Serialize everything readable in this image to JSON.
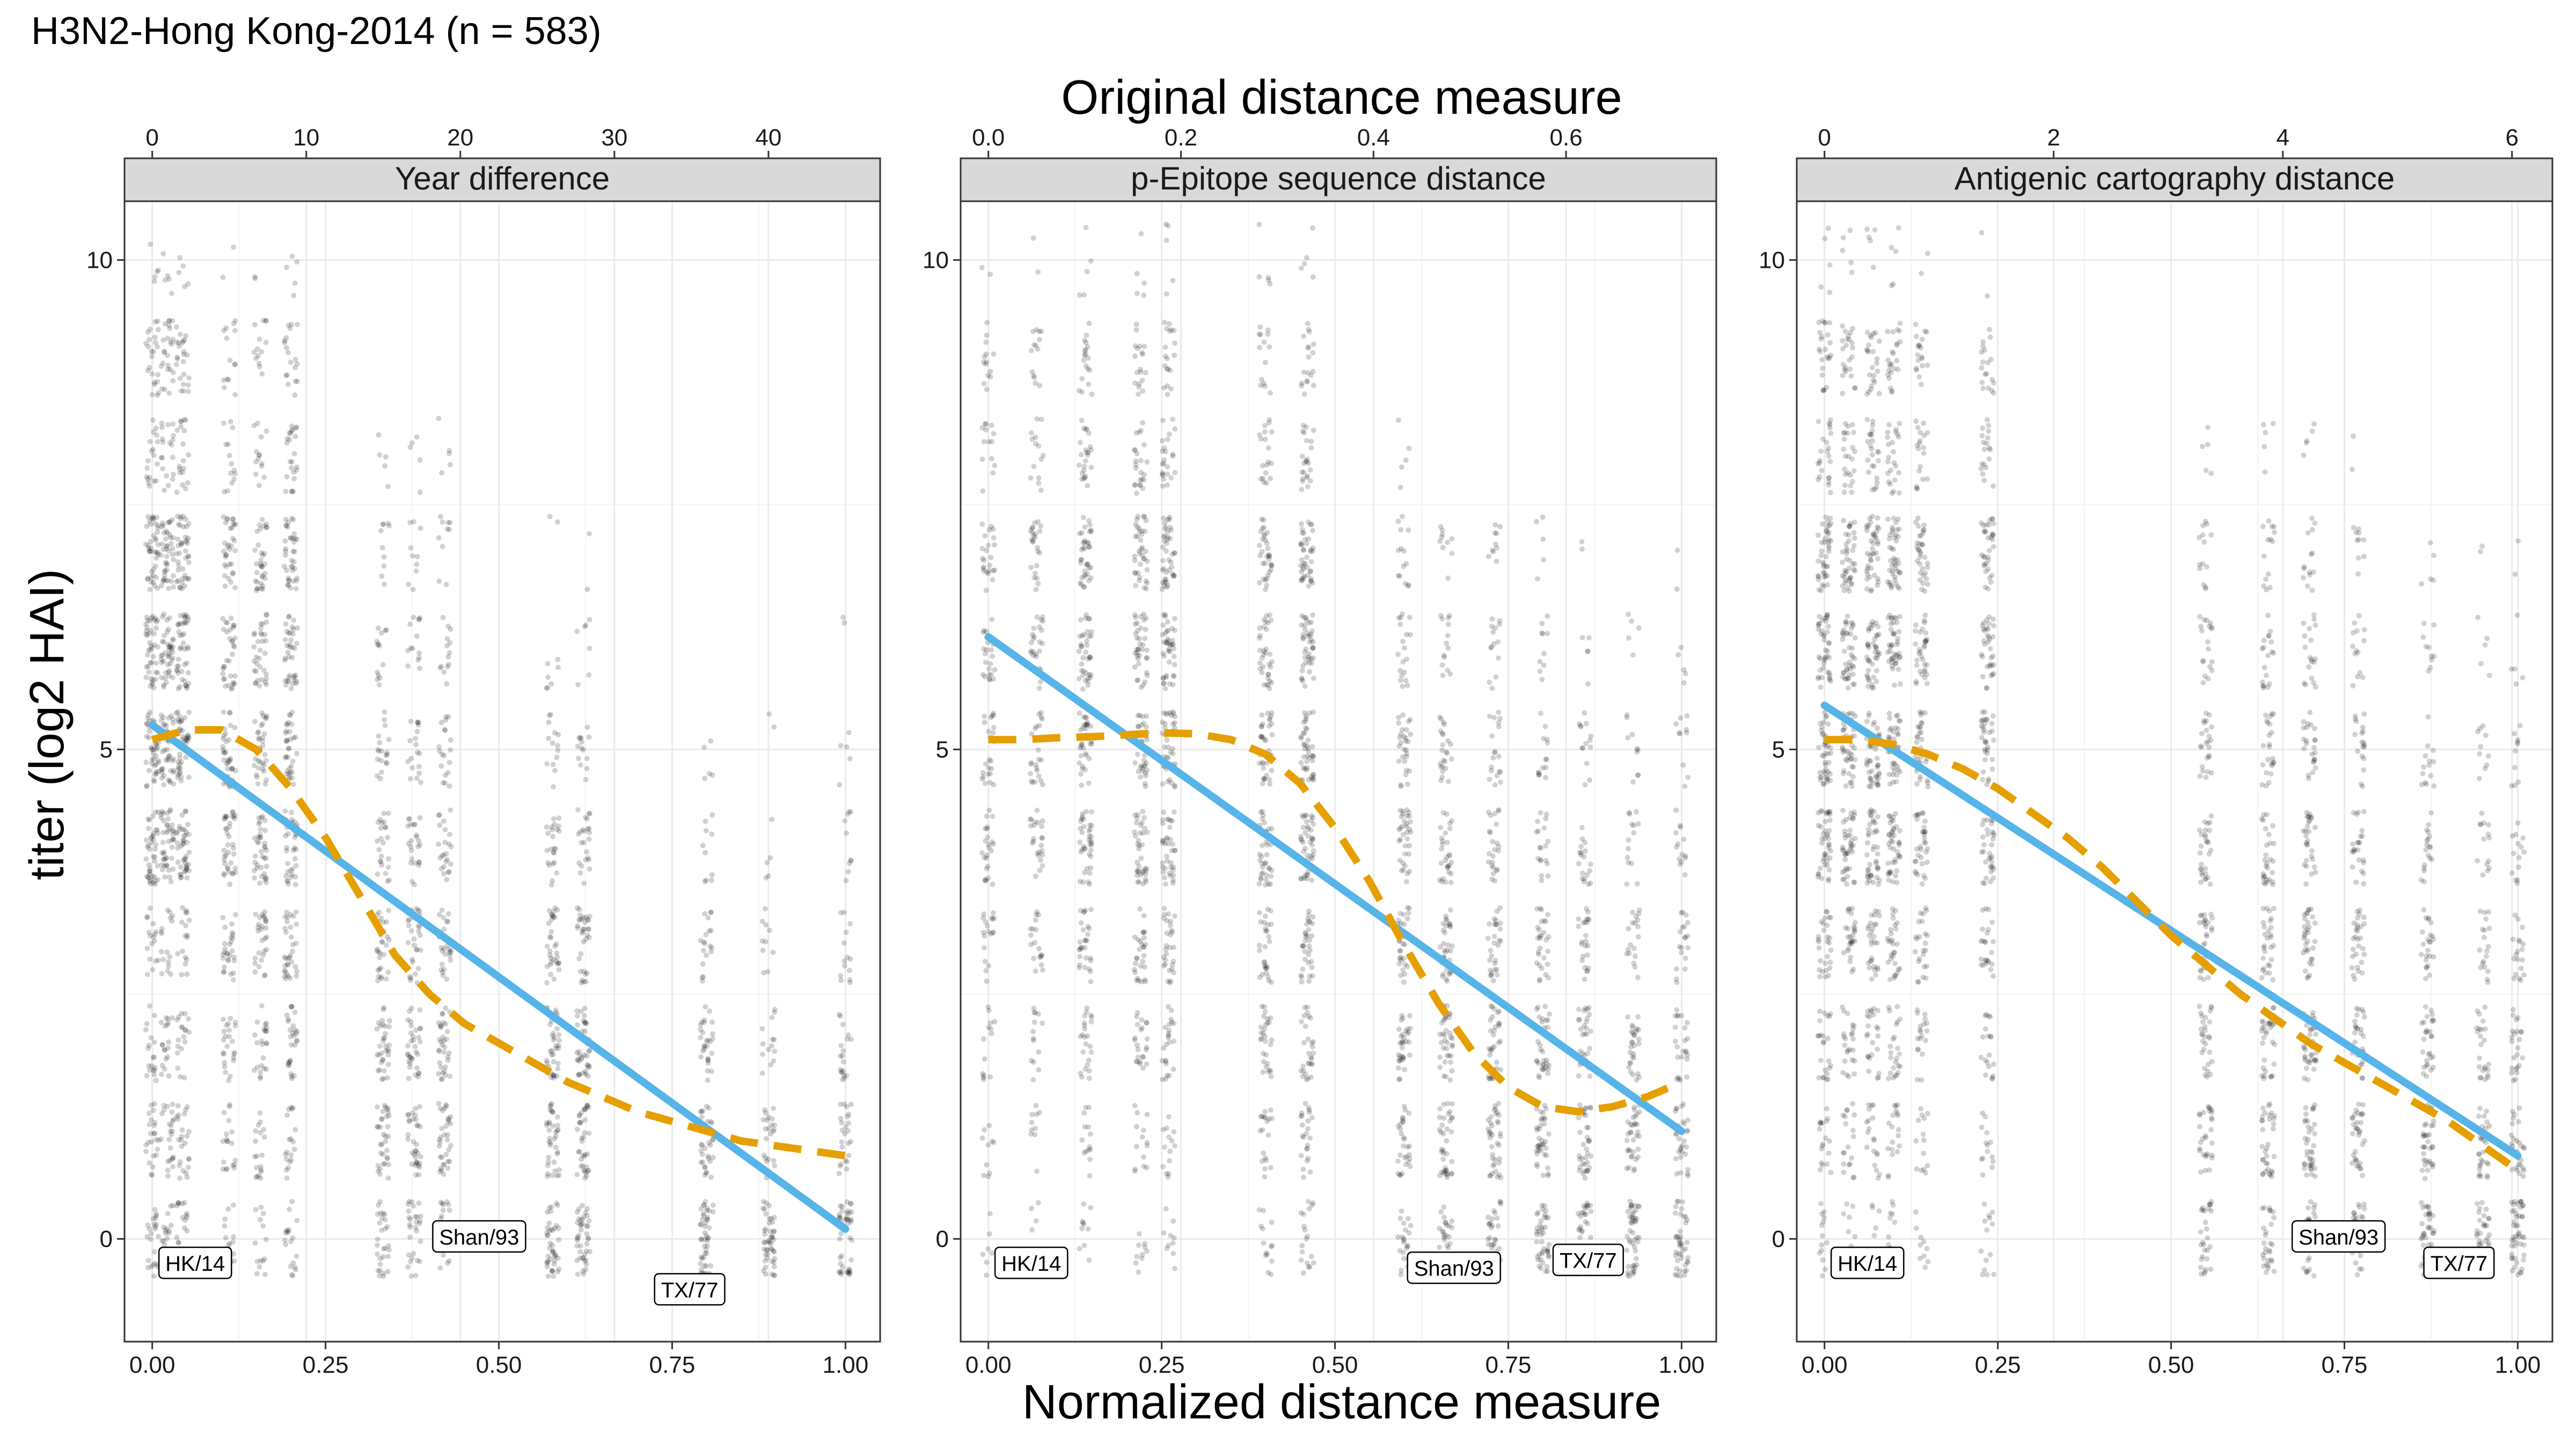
{
  "title": "H3N2-Hong Kong-2014 (n = 583)",
  "top_axis_title": "Original distance measure",
  "bottom_axis_title": "Normalized distance measure",
  "y_axis_title": "titer (log2 HAI)",
  "colors": {
    "linear_fit": "#56B4E9",
    "loess_fit": "#E69F00",
    "points": "#000000",
    "strip_fill": "#d9d9d9",
    "grid": "#ebebeb"
  },
  "chart_data": [
    {
      "type": "scatter",
      "panel": "Year difference",
      "xlabel": "Normalized distance measure",
      "ylabel": "titer (log2 HAI)",
      "x_normalized_ticks": [
        "0.00",
        "0.25",
        "0.50",
        "0.75",
        "1.00"
      ],
      "y_ticks": [
        "0",
        "5",
        "10"
      ],
      "xlim": [
        -0.04,
        1.05
      ],
      "ylim": [
        -1.05,
        10.6
      ],
      "top_axis": {
        "max": 45,
        "ticks": [
          0,
          10,
          20,
          30,
          40
        ],
        "tick_labels": [
          "0",
          "10",
          "20",
          "30",
          "40"
        ]
      },
      "columns": [
        {
          "x": 0.0,
          "dens": [
            0.5,
            0.5,
            0.4,
            0.35,
            0.9,
            0.9,
            0.9,
            0.9,
            0.4,
            0.5,
            0.1
          ]
        },
        {
          "x": 0.022,
          "dens": [
            0.5,
            0.5,
            0.4,
            0.35,
            0.9,
            0.9,
            0.9,
            0.9,
            0.4,
            0.5,
            0.1
          ]
        },
        {
          "x": 0.044,
          "dens": [
            0.5,
            0.5,
            0.4,
            0.35,
            0.9,
            0.9,
            0.9,
            0.9,
            0.4,
            0.5,
            0.1
          ]
        },
        {
          "x": 0.111,
          "dens": [
            0.3,
            0.4,
            0.5,
            0.6,
            0.8,
            0.8,
            0.7,
            0.7,
            0.3,
            0.3,
            0.05
          ]
        },
        {
          "x": 0.156,
          "dens": [
            0.3,
            0.4,
            0.5,
            0.6,
            0.8,
            0.8,
            0.7,
            0.7,
            0.3,
            0.3,
            0.05
          ]
        },
        {
          "x": 0.2,
          "dens": [
            0.4,
            0.4,
            0.6,
            0.7,
            0.8,
            0.8,
            0.8,
            0.8,
            0.5,
            0.4,
            0.1
          ]
        },
        {
          "x": 0.333,
          "dens": [
            0.6,
            0.7,
            0.7,
            0.6,
            0.5,
            0.4,
            0.3,
            0.2,
            0.1,
            0.0,
            0.0
          ]
        },
        {
          "x": 0.378,
          "dens": [
            0.6,
            0.7,
            0.7,
            0.6,
            0.5,
            0.4,
            0.3,
            0.2,
            0.1,
            0.0,
            0.0
          ]
        },
        {
          "x": 0.422,
          "dens": [
            0.6,
            0.7,
            0.7,
            0.6,
            0.5,
            0.4,
            0.3,
            0.2,
            0.1,
            0.0,
            0.0
          ]
        },
        {
          "x": 0.578,
          "dens": [
            0.9,
            0.8,
            0.8,
            0.7,
            0.5,
            0.3,
            0.15,
            0.05,
            0.0,
            0.0,
            0.0
          ]
        },
        {
          "x": 0.622,
          "dens": [
            0.9,
            0.8,
            0.8,
            0.7,
            0.5,
            0.3,
            0.15,
            0.05,
            0.0,
            0.0,
            0.0
          ]
        },
        {
          "x": 0.8,
          "dens": [
            1.0,
            0.7,
            0.6,
            0.4,
            0.2,
            0.1,
            0.0,
            0.0,
            0.0,
            0.0,
            0.0
          ]
        },
        {
          "x": 0.889,
          "dens": [
            1.0,
            0.5,
            0.3,
            0.2,
            0.1,
            0.05,
            0.0,
            0.0,
            0.0,
            0.0,
            0.0
          ]
        },
        {
          "x": 1.0,
          "dens": [
            1.0,
            0.5,
            0.4,
            0.3,
            0.2,
            0.1,
            0.05,
            0.0,
            0.0,
            0.0,
            0.0
          ]
        }
      ],
      "series": [
        {
          "name": "linear fit",
          "x": [
            0,
            1
          ],
          "y": [
            5.25,
            0.1
          ]
        },
        {
          "name": "loess fit",
          "x": [
            0,
            0.05,
            0.1,
            0.15,
            0.2,
            0.25,
            0.3,
            0.35,
            0.4,
            0.45,
            0.5,
            0.55,
            0.6,
            0.65,
            0.7,
            0.75,
            0.8,
            0.85,
            0.9,
            0.95,
            1.0
          ],
          "y": [
            5.1,
            5.2,
            5.2,
            5.0,
            4.6,
            4.1,
            3.5,
            2.9,
            2.5,
            2.2,
            2.0,
            1.8,
            1.6,
            1.45,
            1.3,
            1.2,
            1.1,
            1.0,
            0.95,
            0.9,
            0.85
          ]
        }
      ],
      "labels": [
        {
          "text": "HK/14",
          "x": 0.005,
          "y": -0.25
        },
        {
          "text": "Shan/93",
          "x": 0.4,
          "y": 0.02
        },
        {
          "text": "TX/77",
          "x": 0.72,
          "y": -0.52
        }
      ]
    },
    {
      "type": "scatter",
      "panel": "p-Epitope sequence distance",
      "xlabel": "Normalized distance measure",
      "ylabel": "titer (log2 HAI)",
      "x_normalized_ticks": [
        "0.00",
        "0.25",
        "0.50",
        "0.75",
        "1.00"
      ],
      "y_ticks": [
        "0",
        "5",
        "10"
      ],
      "xlim": [
        -0.04,
        1.05
      ],
      "ylim": [
        -1.05,
        10.6
      ],
      "top_axis": {
        "max": 0.72,
        "ticks": [
          0,
          0.2,
          0.4,
          0.6
        ],
        "tick_labels": [
          "0.0",
          "0.2",
          "0.4",
          "0.6"
        ]
      },
      "columns": [
        {
          "x": 0.0,
          "dens": [
            0.15,
            0.2,
            0.3,
            0.4,
            0.5,
            0.5,
            0.5,
            0.5,
            0.3,
            0.3,
            0.05
          ]
        },
        {
          "x": 0.07,
          "dens": [
            0.1,
            0.2,
            0.3,
            0.4,
            0.5,
            0.5,
            0.5,
            0.5,
            0.3,
            0.3,
            0.05
          ]
        },
        {
          "x": 0.14,
          "dens": [
            0.2,
            0.3,
            0.5,
            0.6,
            0.8,
            0.8,
            0.8,
            0.8,
            0.5,
            0.4,
            0.1
          ]
        },
        {
          "x": 0.22,
          "dens": [
            0.2,
            0.3,
            0.5,
            0.6,
            0.8,
            0.8,
            0.8,
            0.8,
            0.5,
            0.4,
            0.1
          ]
        },
        {
          "x": 0.26,
          "dens": [
            0.2,
            0.3,
            0.5,
            0.6,
            0.8,
            0.9,
            0.9,
            0.9,
            0.5,
            0.4,
            0.1
          ]
        },
        {
          "x": 0.4,
          "dens": [
            0.3,
            0.4,
            0.6,
            0.6,
            0.8,
            0.8,
            0.7,
            0.7,
            0.4,
            0.3,
            0.1
          ]
        },
        {
          "x": 0.46,
          "dens": [
            0.4,
            0.5,
            0.6,
            0.7,
            0.9,
            0.9,
            0.9,
            0.9,
            0.5,
            0.4,
            0.1
          ]
        },
        {
          "x": 0.6,
          "dens": [
            0.5,
            0.6,
            0.7,
            0.7,
            0.7,
            0.6,
            0.4,
            0.3,
            0.1,
            0.0,
            0.0
          ]
        },
        {
          "x": 0.66,
          "dens": [
            0.7,
            0.8,
            0.8,
            0.7,
            0.6,
            0.5,
            0.3,
            0.2,
            0.0,
            0.0,
            0.0
          ]
        },
        {
          "x": 0.73,
          "dens": [
            0.8,
            0.8,
            0.7,
            0.6,
            0.5,
            0.4,
            0.3,
            0.2,
            0.0,
            0.0,
            0.0
          ]
        },
        {
          "x": 0.8,
          "dens": [
            0.9,
            0.8,
            0.7,
            0.6,
            0.4,
            0.3,
            0.2,
            0.1,
            0.0,
            0.0,
            0.0
          ]
        },
        {
          "x": 0.86,
          "dens": [
            1.0,
            0.8,
            0.6,
            0.5,
            0.4,
            0.3,
            0.1,
            0.05,
            0.0,
            0.0,
            0.0
          ]
        },
        {
          "x": 0.93,
          "dens": [
            1.0,
            0.7,
            0.6,
            0.4,
            0.3,
            0.2,
            0.1,
            0.0,
            0.0,
            0.0,
            0.0
          ]
        },
        {
          "x": 1.0,
          "dens": [
            0.9,
            0.6,
            0.5,
            0.4,
            0.3,
            0.2,
            0.1,
            0.05,
            0.0,
            0.0,
            0.0
          ]
        }
      ],
      "series": [
        {
          "name": "linear fit",
          "x": [
            0,
            1
          ],
          "y": [
            6.15,
            1.1
          ]
        },
        {
          "name": "loess fit",
          "x": [
            0,
            0.05,
            0.1,
            0.15,
            0.2,
            0.25,
            0.3,
            0.35,
            0.4,
            0.45,
            0.5,
            0.55,
            0.6,
            0.65,
            0.7,
            0.75,
            0.8,
            0.85,
            0.9,
            0.95,
            1.0
          ],
          "y": [
            5.1,
            5.1,
            5.12,
            5.13,
            5.15,
            5.17,
            5.16,
            5.1,
            4.95,
            4.65,
            4.2,
            3.65,
            3.0,
            2.4,
            1.9,
            1.55,
            1.35,
            1.3,
            1.35,
            1.45,
            1.6
          ]
        }
      ],
      "labels": [
        {
          "text": "HK/14",
          "x": 0.005,
          "y": -0.25
        },
        {
          "text": "Shan/93",
          "x": 0.6,
          "y": -0.3
        },
        {
          "text": "TX/77",
          "x": 0.81,
          "y": -0.22
        }
      ]
    },
    {
      "type": "scatter",
      "panel": "Antigenic cartography distance",
      "xlabel": "Normalized distance measure",
      "ylabel": "titer (log2 HAI)",
      "x_normalized_ticks": [
        "0.00",
        "0.25",
        "0.50",
        "0.75",
        "1.00"
      ],
      "y_ticks": [
        "0",
        "5",
        "10"
      ],
      "xlim": [
        -0.04,
        1.05
      ],
      "ylim": [
        -1.05,
        10.6
      ],
      "top_axis": {
        "max": 6.05,
        "ticks": [
          0,
          2,
          4,
          6
        ],
        "tick_labels": [
          "0",
          "2",
          "4",
          "6"
        ]
      },
      "columns": [
        {
          "x": 0.0,
          "dens": [
            0.3,
            0.4,
            0.5,
            0.6,
            0.9,
            0.9,
            0.9,
            0.9,
            0.5,
            0.5,
            0.1
          ]
        },
        {
          "x": 0.035,
          "dens": [
            0.3,
            0.4,
            0.5,
            0.6,
            0.9,
            0.9,
            0.9,
            0.9,
            0.5,
            0.5,
            0.1
          ]
        },
        {
          "x": 0.07,
          "dens": [
            0.3,
            0.4,
            0.5,
            0.6,
            0.9,
            0.9,
            0.9,
            0.9,
            0.5,
            0.5,
            0.1
          ]
        },
        {
          "x": 0.1,
          "dens": [
            0.3,
            0.4,
            0.5,
            0.6,
            0.9,
            0.9,
            0.9,
            0.9,
            0.5,
            0.5,
            0.1
          ]
        },
        {
          "x": 0.14,
          "dens": [
            0.2,
            0.3,
            0.4,
            0.5,
            0.7,
            0.7,
            0.7,
            0.7,
            0.4,
            0.4,
            0.05
          ]
        },
        {
          "x": 0.235,
          "dens": [
            0.3,
            0.3,
            0.4,
            0.5,
            0.7,
            0.7,
            0.7,
            0.7,
            0.4,
            0.4,
            0.05
          ]
        },
        {
          "x": 0.55,
          "dens": [
            0.6,
            0.6,
            0.6,
            0.6,
            0.6,
            0.5,
            0.4,
            0.3,
            0.1,
            0.0,
            0.0
          ]
        },
        {
          "x": 0.64,
          "dens": [
            0.6,
            0.7,
            0.7,
            0.6,
            0.6,
            0.5,
            0.4,
            0.3,
            0.1,
            0.0,
            0.0
          ]
        },
        {
          "x": 0.7,
          "dens": [
            0.7,
            0.8,
            0.8,
            0.7,
            0.6,
            0.5,
            0.4,
            0.3,
            0.1,
            0.0,
            0.0
          ]
        },
        {
          "x": 0.77,
          "dens": [
            0.7,
            0.7,
            0.6,
            0.6,
            0.5,
            0.4,
            0.3,
            0.2,
            0.05,
            0.0,
            0.0
          ]
        },
        {
          "x": 0.87,
          "dens": [
            0.8,
            0.7,
            0.6,
            0.5,
            0.4,
            0.3,
            0.2,
            0.1,
            0.0,
            0.0,
            0.0
          ]
        },
        {
          "x": 0.95,
          "dens": [
            0.9,
            0.6,
            0.5,
            0.4,
            0.3,
            0.2,
            0.1,
            0.05,
            0.0,
            0.0,
            0.0
          ]
        },
        {
          "x": 1.0,
          "dens": [
            1.0,
            0.6,
            0.5,
            0.4,
            0.3,
            0.2,
            0.1,
            0.05,
            0.0,
            0.0,
            0.0
          ]
        }
      ],
      "series": [
        {
          "name": "linear fit",
          "x": [
            0,
            1
          ],
          "y": [
            5.45,
            0.85
          ]
        },
        {
          "name": "loess fit",
          "x": [
            0,
            0.05,
            0.1,
            0.15,
            0.2,
            0.25,
            0.3,
            0.35,
            0.4,
            0.45,
            0.5,
            0.55,
            0.6,
            0.65,
            0.7,
            0.75,
            0.8,
            0.85,
            0.9,
            0.95,
            1.0
          ],
          "y": [
            5.1,
            5.1,
            5.05,
            4.95,
            4.8,
            4.6,
            4.35,
            4.1,
            3.8,
            3.45,
            3.1,
            2.8,
            2.5,
            2.25,
            2.0,
            1.8,
            1.6,
            1.4,
            1.2,
            0.95,
            0.7
          ]
        }
      ],
      "labels": [
        {
          "text": "HK/14",
          "x": 0.005,
          "y": -0.25
        },
        {
          "text": "Shan/93",
          "x": 0.67,
          "y": 0.02
        },
        {
          "text": "TX/77",
          "x": 0.86,
          "y": -0.25
        }
      ]
    }
  ]
}
